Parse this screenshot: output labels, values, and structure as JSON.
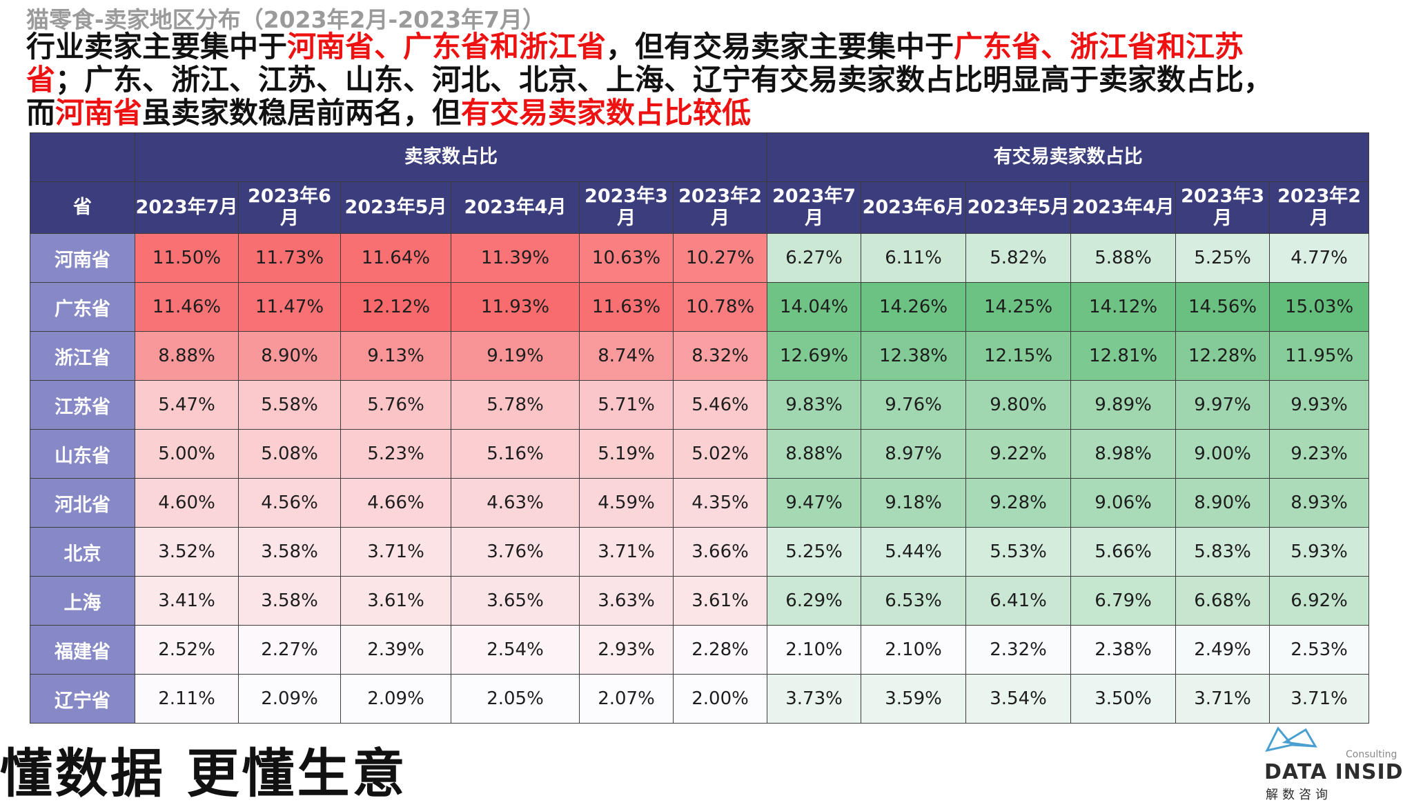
{
  "subtitle": "猫零食-卖家地区分布（2023年2月-2023年7月）",
  "headline_segments": [
    {
      "text": "行业卖家主要集中于",
      "red": false
    },
    {
      "text": "河南省、广东省和浙江省",
      "red": true
    },
    {
      "text": "，但有交易卖家主要集中于",
      "red": false
    },
    {
      "text": "广东省、浙江省和江苏省",
      "red": true
    },
    {
      "text": "；广东、浙江、江苏、山东、河北、北京、上海、辽宁有交易卖家数占比明显高于卖家数占比，而",
      "red": false
    },
    {
      "text": "河南省",
      "red": true
    },
    {
      "text": "虽卖家数稳居前两名，但",
      "red": false
    },
    {
      "text": "有交易卖家数占比较低",
      "red": true
    }
  ],
  "footer_slogan": "懂数据 更懂生意",
  "logo": {
    "name": "DATA INSIDER",
    "consulting": "Consulting",
    "cn": "解数咨询"
  },
  "colors": {
    "header_bg": "#3c3d7c",
    "province_bg": "#8788c6",
    "red_high": "#f8696b",
    "green_high": "#63be7b",
    "low": "#fcfcff"
  },
  "chart_data": {
    "type": "table",
    "province_header": "省",
    "group_headers": [
      "卖家数占比",
      "有交易卖家数占比"
    ],
    "month_headers": [
      "2023年7月",
      "2023年6月",
      "2023年5月",
      "2023年4月",
      "2023年3月",
      "2023年2月"
    ],
    "rows": [
      {
        "province": "河南省",
        "seller_share": [
          "11.50%",
          "11.73%",
          "11.64%",
          "11.39%",
          "10.63%",
          "10.27%"
        ],
        "trading_seller_share": [
          "6.27%",
          "6.11%",
          "5.82%",
          "5.88%",
          "5.25%",
          "4.77%"
        ]
      },
      {
        "province": "广东省",
        "seller_share": [
          "11.46%",
          "11.47%",
          "12.12%",
          "11.93%",
          "11.63%",
          "10.78%"
        ],
        "trading_seller_share": [
          "14.04%",
          "14.26%",
          "14.25%",
          "14.12%",
          "14.56%",
          "15.03%"
        ]
      },
      {
        "province": "浙江省",
        "seller_share": [
          "8.88%",
          "8.90%",
          "9.13%",
          "9.19%",
          "8.74%",
          "8.32%"
        ],
        "trading_seller_share": [
          "12.69%",
          "12.38%",
          "12.15%",
          "12.81%",
          "12.28%",
          "11.95%"
        ]
      },
      {
        "province": "江苏省",
        "seller_share": [
          "5.47%",
          "5.58%",
          "5.76%",
          "5.78%",
          "5.71%",
          "5.46%"
        ],
        "trading_seller_share": [
          "9.83%",
          "9.76%",
          "9.80%",
          "9.89%",
          "9.97%",
          "9.93%"
        ]
      },
      {
        "province": "山东省",
        "seller_share": [
          "5.00%",
          "5.08%",
          "5.23%",
          "5.16%",
          "5.19%",
          "5.02%"
        ],
        "trading_seller_share": [
          "8.88%",
          "8.97%",
          "9.22%",
          "8.98%",
          "9.00%",
          "9.23%"
        ]
      },
      {
        "province": "河北省",
        "seller_share": [
          "4.60%",
          "4.56%",
          "4.66%",
          "4.63%",
          "4.59%",
          "4.35%"
        ],
        "trading_seller_share": [
          "9.47%",
          "9.18%",
          "9.28%",
          "9.06%",
          "8.90%",
          "8.93%"
        ]
      },
      {
        "province": "北京",
        "seller_share": [
          "3.52%",
          "3.58%",
          "3.71%",
          "3.76%",
          "3.71%",
          "3.66%"
        ],
        "trading_seller_share": [
          "5.25%",
          "5.44%",
          "5.53%",
          "5.66%",
          "5.83%",
          "5.93%"
        ]
      },
      {
        "province": "上海",
        "seller_share": [
          "3.41%",
          "3.58%",
          "3.61%",
          "3.65%",
          "3.63%",
          "3.61%"
        ],
        "trading_seller_share": [
          "6.29%",
          "6.53%",
          "6.41%",
          "6.79%",
          "6.68%",
          "6.92%"
        ]
      },
      {
        "province": "福建省",
        "seller_share": [
          "2.52%",
          "2.27%",
          "2.39%",
          "2.54%",
          "2.93%",
          "2.28%"
        ],
        "trading_seller_share": [
          "2.10%",
          "2.10%",
          "2.32%",
          "2.38%",
          "2.49%",
          "2.53%"
        ]
      },
      {
        "province": "辽宁省",
        "seller_share": [
          "2.11%",
          "2.09%",
          "2.09%",
          "2.05%",
          "2.07%",
          "2.00%"
        ],
        "trading_seller_share": [
          "3.73%",
          "3.59%",
          "3.54%",
          "3.50%",
          "3.71%",
          "3.71%"
        ]
      }
    ]
  }
}
